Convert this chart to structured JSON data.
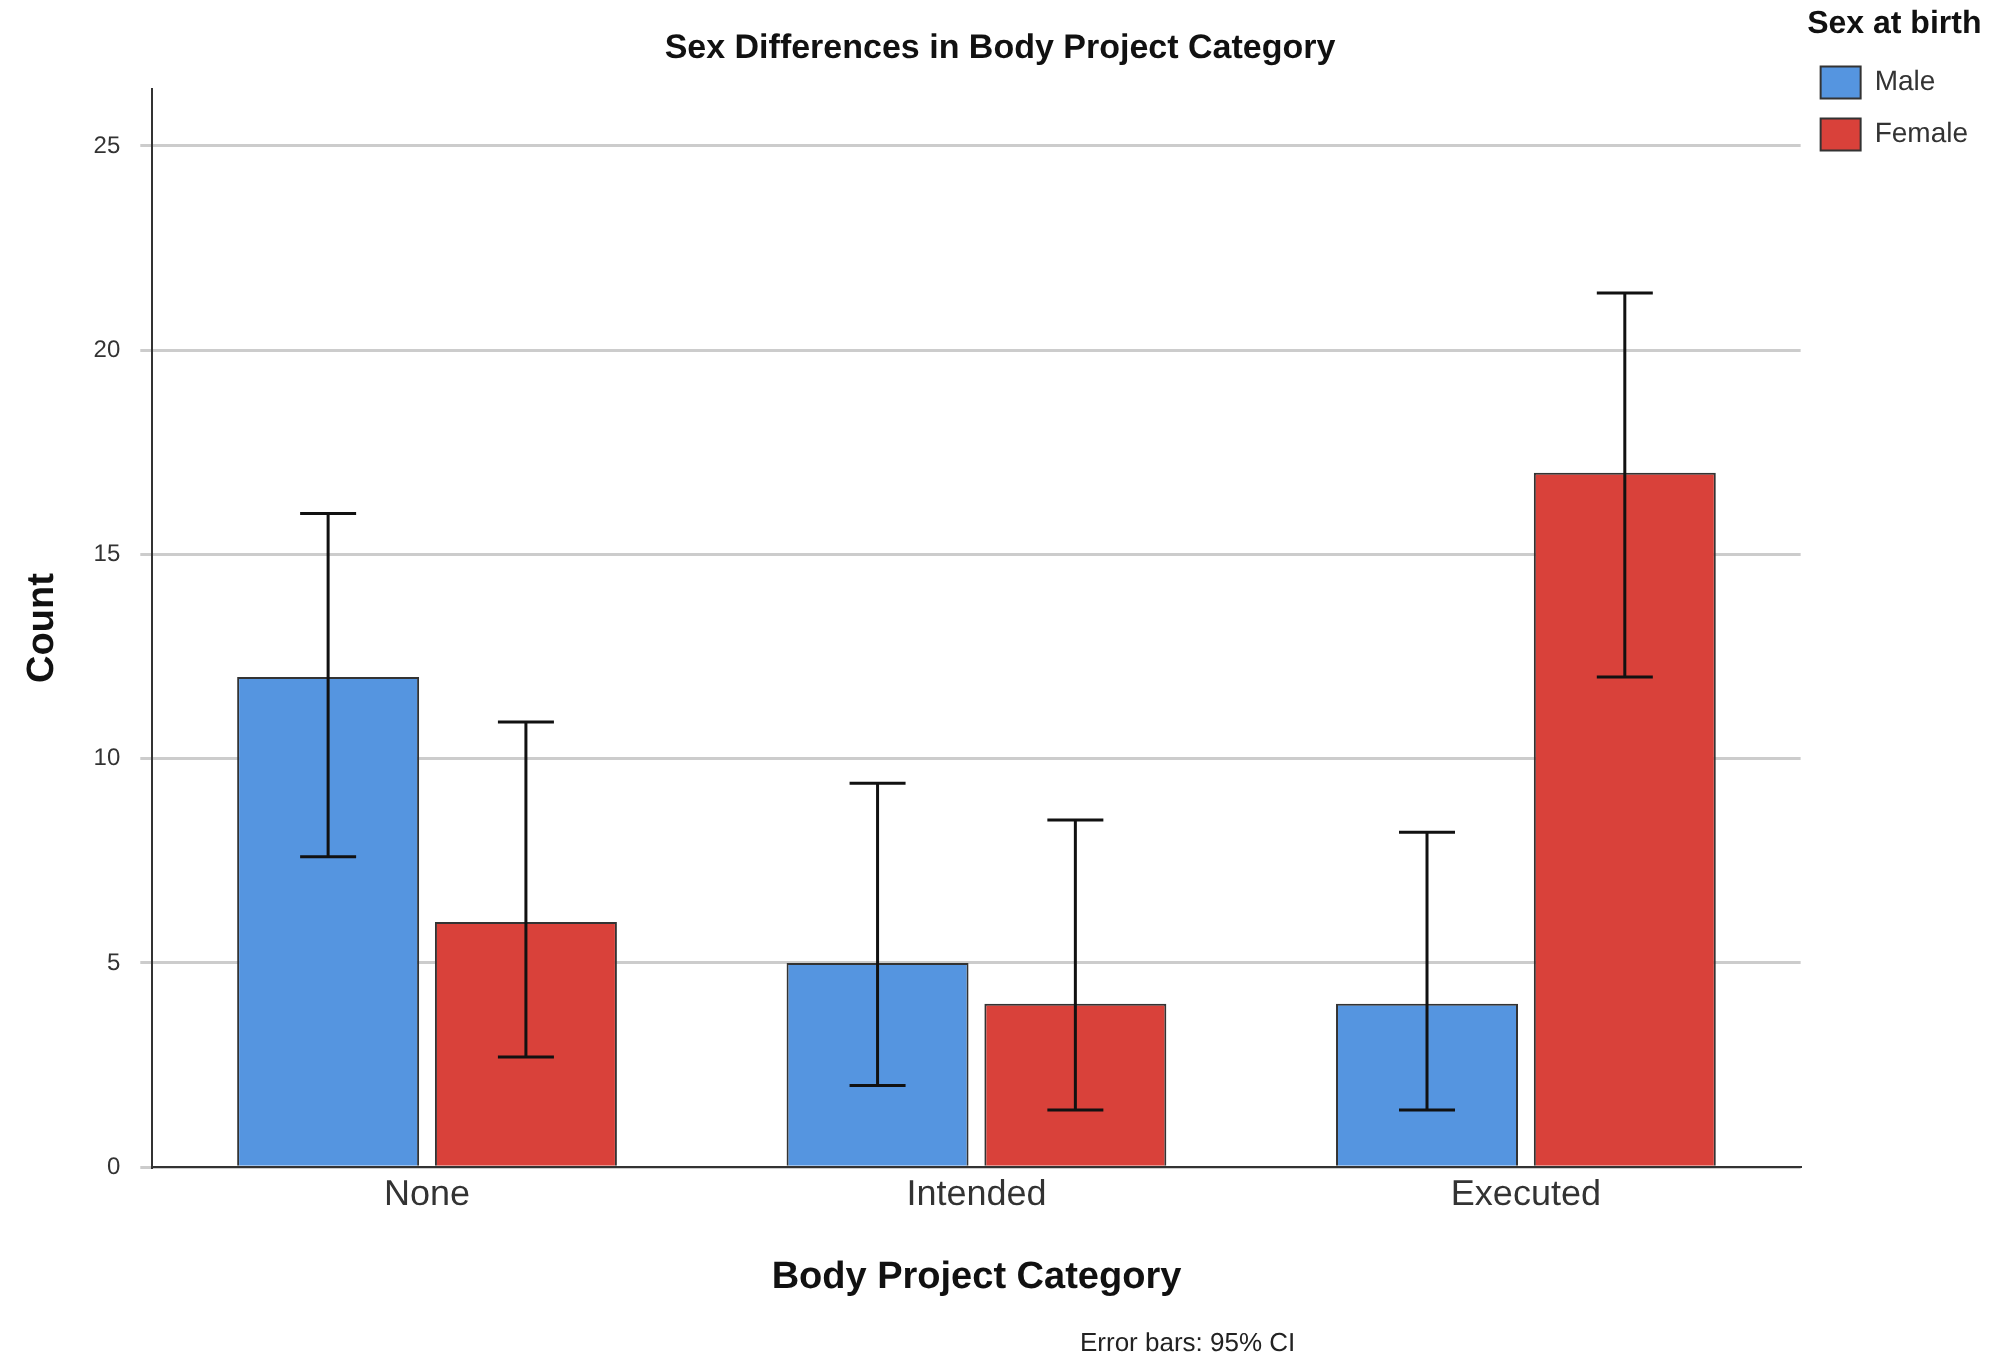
{
  "chart_data": {
    "type": "bar",
    "title": "Sex Differences in Body Project Category",
    "xlabel": "Body Project Category",
    "ylabel": "Count",
    "legend_title": "Sex at birth",
    "categories": [
      "None",
      "Intended",
      "Executed"
    ],
    "series": [
      {
        "name": "Male",
        "color": "#5595e0",
        "values": [
          12,
          5,
          4
        ],
        "errors": [
          [
            7.6,
            16
          ],
          [
            2,
            9.4
          ],
          [
            1.4,
            8.2
          ]
        ]
      },
      {
        "name": "Female",
        "color": "#d9413a",
        "values": [
          6,
          4,
          17
        ],
        "errors": [
          [
            2.7,
            10.9
          ],
          [
            1.4,
            8.5
          ],
          [
            12,
            21.4
          ]
        ]
      }
    ],
    "ylim": [
      0,
      26.4
    ],
    "yticks": [
      0,
      5,
      10,
      15,
      20,
      25
    ],
    "grid": "y",
    "legend": "top right",
    "annotations": [
      "Error bars: 95% CI"
    ]
  }
}
